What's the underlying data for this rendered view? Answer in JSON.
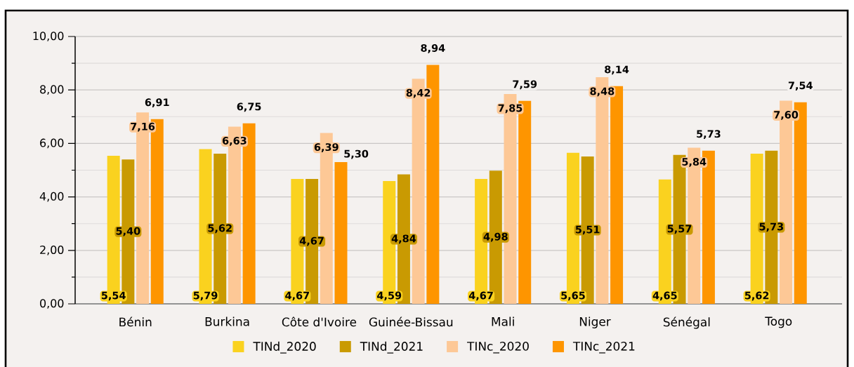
{
  "chart_data": {
    "type": "bar",
    "categories": [
      "Bénin",
      "Burkina",
      "Côte d'Ivoire",
      "Guinée-Bissau",
      "Mali",
      "Niger",
      "Sénégal",
      "Togo"
    ],
    "series": [
      {
        "name": "TINd_2020",
        "color": "#fad21f",
        "values": [
          5.54,
          5.79,
          4.67,
          4.59,
          4.67,
          5.65,
          4.65,
          5.62
        ],
        "value_labels": [
          "5,54",
          "5,79",
          "4,67",
          "4,59",
          "4,67",
          "5,65",
          "4,65",
          "5,62"
        ]
      },
      {
        "name": "TINd_2021",
        "color": "#c99a02",
        "values": [
          5.4,
          5.62,
          4.67,
          4.84,
          4.98,
          5.51,
          5.57,
          5.73
        ],
        "value_labels": [
          "5,40",
          "5,62",
          "4,67",
          "4,84",
          "4,98",
          "5,51",
          "5,57",
          "5,73"
        ]
      },
      {
        "name": "TINc_2020",
        "color": "#fdc896",
        "values": [
          7.16,
          6.63,
          6.39,
          8.42,
          7.85,
          8.48,
          5.84,
          7.6
        ],
        "value_labels": [
          "7,16",
          "6,63",
          "6,39",
          "8,42",
          "7,85",
          "8,48",
          "5,84",
          "7,60"
        ]
      },
      {
        "name": "TINc_2021",
        "color": "#fe9500",
        "values": [
          6.91,
          6.75,
          5.3,
          8.94,
          7.59,
          8.14,
          5.73,
          7.54
        ],
        "value_labels": [
          "6,91",
          "6,75",
          "5,30",
          "8,94",
          "7,59",
          "8,14",
          "5,73",
          "7,54"
        ]
      }
    ],
    "ylim": [
      0,
      10
    ],
    "yticks": [
      {
        "value": 0,
        "label": "0,00"
      },
      {
        "value": 1,
        "label": null
      },
      {
        "value": 2,
        "label": "2,00"
      },
      {
        "value": 3,
        "label": null
      },
      {
        "value": 4,
        "label": "4,00"
      },
      {
        "value": 5,
        "label": null
      },
      {
        "value": 6,
        "label": "6,00"
      },
      {
        "value": 7,
        "label": null
      },
      {
        "value": 8,
        "label": "8,00"
      },
      {
        "value": 9,
        "label": null
      },
      {
        "value": 10,
        "label": "10,00"
      }
    ],
    "grid": "y",
    "legend": "bottom"
  }
}
